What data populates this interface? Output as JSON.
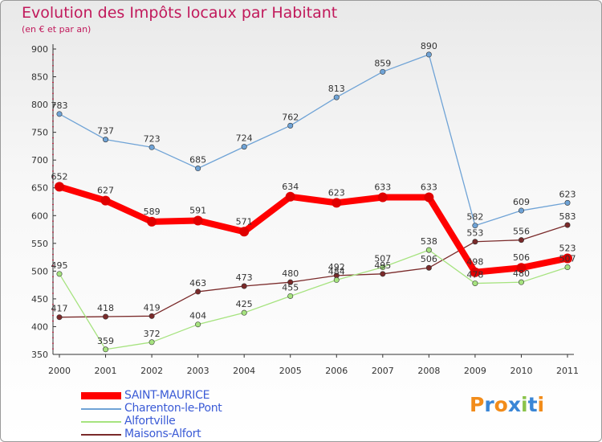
{
  "header": {
    "title": "Evolution des Impôts locaux par Habitant",
    "subtitle": "(en € et par an)"
  },
  "chart_data": {
    "type": "line",
    "title": "Evolution des Impôts locaux par Habitant",
    "subtitle": "(en € et par an)",
    "xlabel": "",
    "ylabel": "",
    "ylim": [
      350,
      900
    ],
    "yticks": [
      350,
      400,
      450,
      500,
      550,
      600,
      650,
      700,
      750,
      800,
      850,
      900
    ],
    "categories": [
      "2000",
      "2001",
      "2002",
      "2003",
      "2004",
      "2005",
      "2006",
      "2007",
      "2008",
      "2009",
      "2010",
      "2011"
    ],
    "grid": false,
    "legend_position": "bottom-left",
    "series": [
      {
        "name": "SAINT-MAURICE",
        "color": "#ff0000",
        "values": [
          652,
          627,
          589,
          591,
          571,
          634,
          623,
          633,
          633,
          498,
          506,
          523
        ]
      },
      {
        "name": "Charenton-le-Pont",
        "color": "#6fa3d6",
        "values": [
          783,
          737,
          723,
          685,
          724,
          762,
          813,
          859,
          890,
          582,
          609,
          623
        ]
      },
      {
        "name": "Alfortville",
        "color": "#a6e37f",
        "values": [
          495,
          359,
          372,
          404,
          425,
          455,
          484,
          507,
          538,
          478,
          480,
          507
        ]
      },
      {
        "name": "Maisons-Alfort",
        "color": "#7a2a2a",
        "values": [
          417,
          418,
          419,
          463,
          473,
          480,
          492,
          495,
          506,
          553,
          556,
          583
        ]
      }
    ]
  },
  "logo": {
    "text": "Proxiti"
  }
}
